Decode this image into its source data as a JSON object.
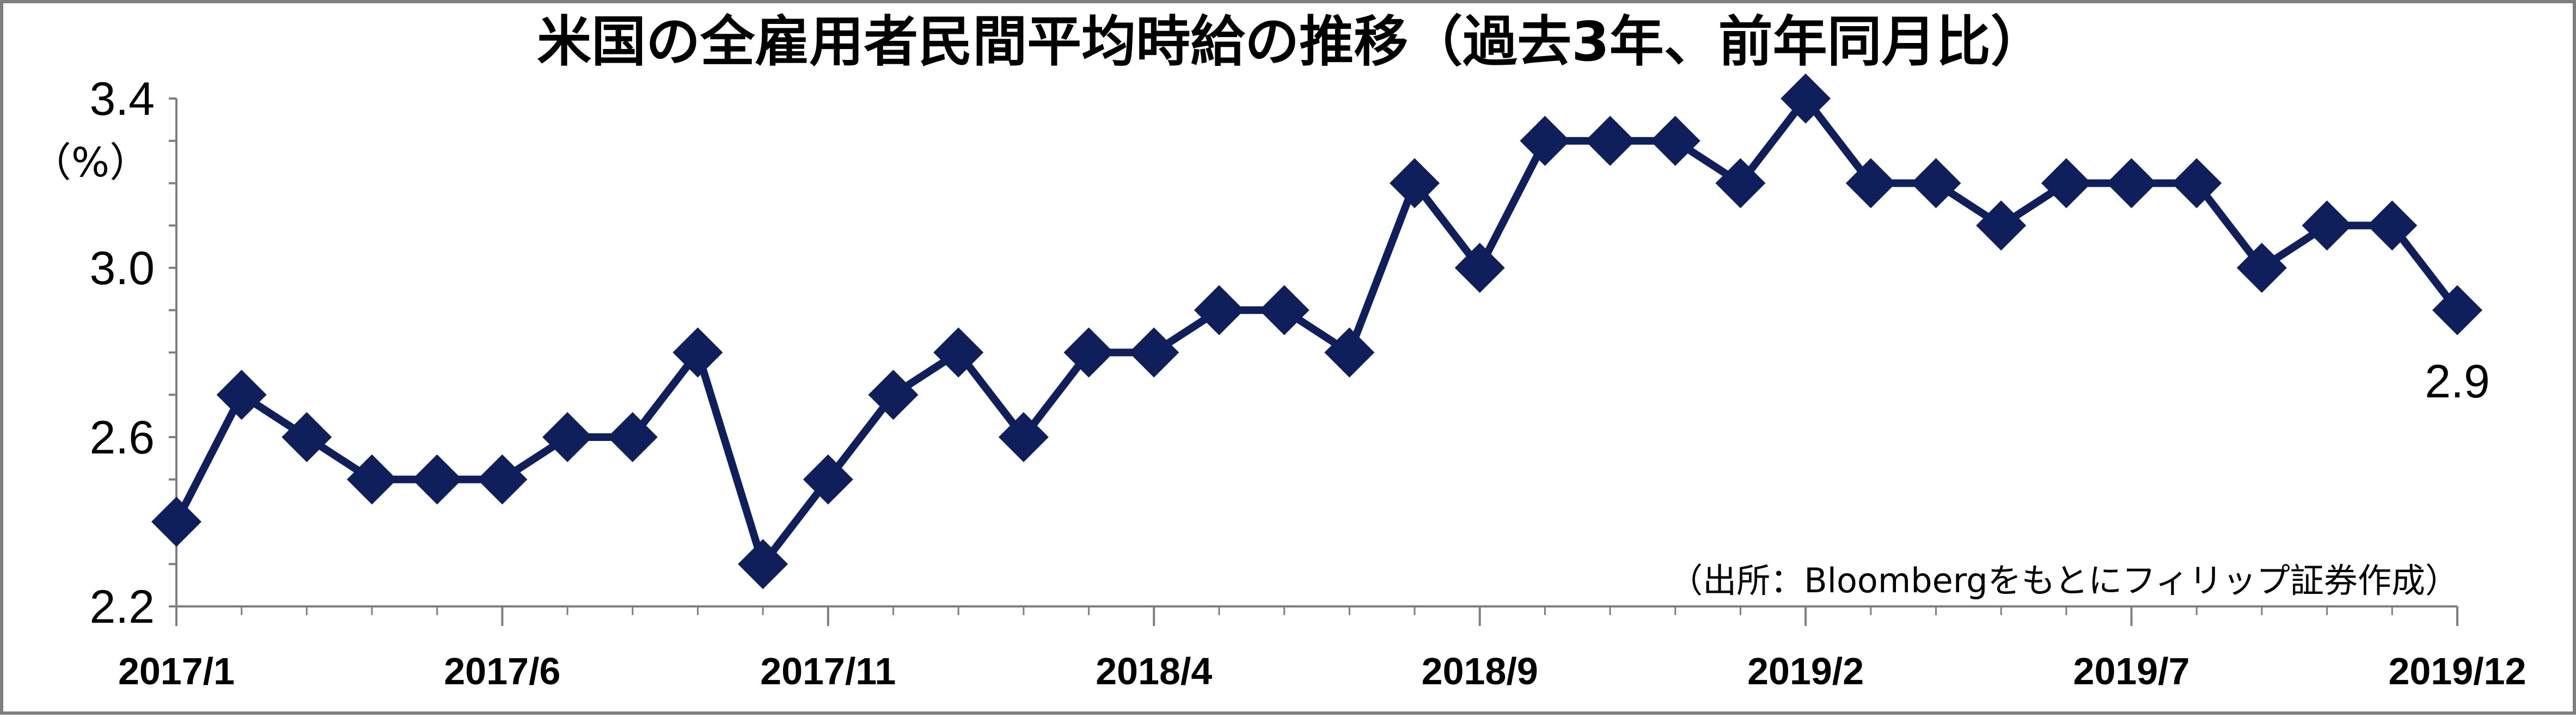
{
  "chart_data": {
    "type": "line",
    "title": "米国の全雇用者民間平均時給の推移（過去3年、前年同月比）",
    "unit_label": "（%）",
    "source": "（出所：Bloombergをもとにフィリップ証券作成）",
    "ylim": [
      2.2,
      3.4
    ],
    "yticks": [
      "2.2",
      "2.6",
      "3.0",
      "3.4"
    ],
    "ytick_values": [
      2.2,
      2.6,
      3.0,
      3.4
    ],
    "categories": [
      "2017/1",
      "2017/2",
      "2017/3",
      "2017/4",
      "2017/5",
      "2017/6",
      "2017/7",
      "2017/8",
      "2017/9",
      "2017/10",
      "2017/11",
      "2017/12",
      "2018/1",
      "2018/2",
      "2018/3",
      "2018/4",
      "2018/5",
      "2018/6",
      "2018/7",
      "2018/8",
      "2018/9",
      "2018/10",
      "2018/11",
      "2018/12",
      "2019/1",
      "2019/2",
      "2019/3",
      "2019/4",
      "2019/5",
      "2019/6",
      "2019/7",
      "2019/8",
      "2019/9",
      "2019/10",
      "2019/11",
      "2019/12"
    ],
    "xtick_labels": [
      "2017/1",
      "2017/6",
      "2017/11",
      "2018/4",
      "2018/9",
      "2019/2",
      "2019/7",
      "2019/12"
    ],
    "xtick_indices": [
      0,
      5,
      10,
      15,
      20,
      25,
      30,
      35
    ],
    "series": [
      {
        "values": [
          2.4,
          2.7,
          2.6,
          2.5,
          2.5,
          2.5,
          2.6,
          2.6,
          2.8,
          2.3,
          2.5,
          2.7,
          2.8,
          2.6,
          2.8,
          2.8,
          2.9,
          2.9,
          2.8,
          3.2,
          3.0,
          3.3,
          3.3,
          3.3,
          3.2,
          3.4,
          3.2,
          3.2,
          3.1,
          3.2,
          3.2,
          3.2,
          3.0,
          3.1,
          3.1,
          2.9
        ],
        "color": "#0e1f5b"
      }
    ],
    "last_value_label": "2.9",
    "grid": false
  }
}
